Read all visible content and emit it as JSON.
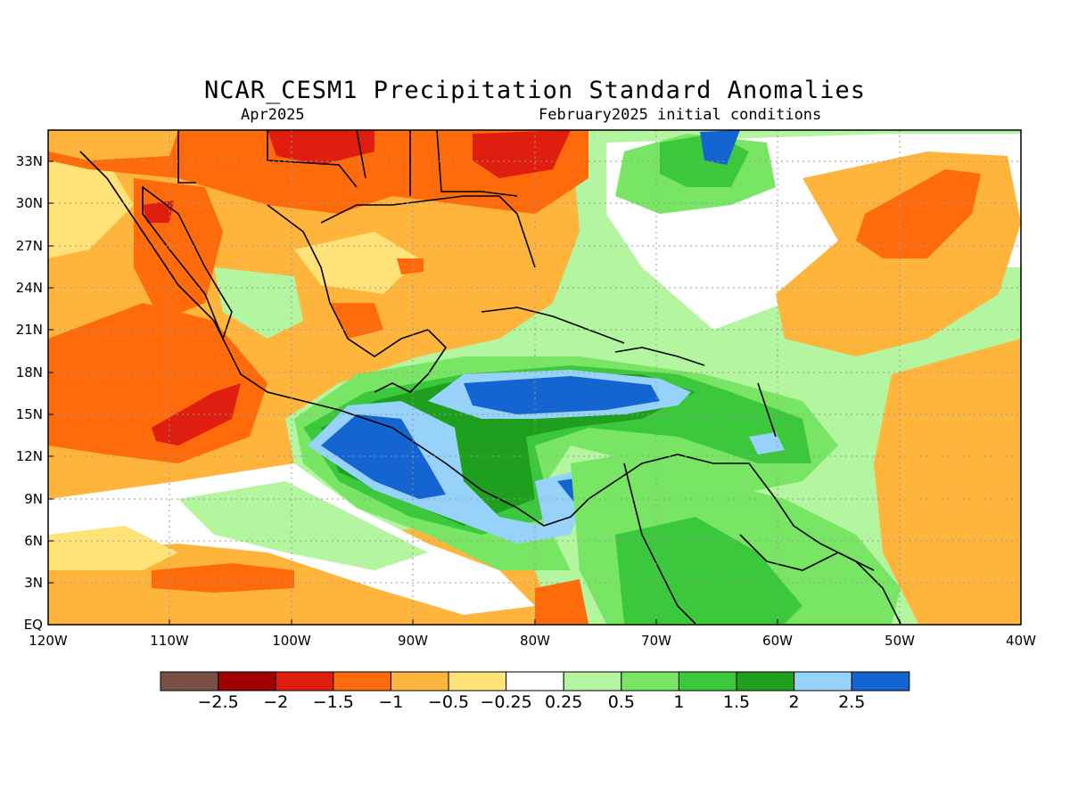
{
  "header": {
    "title": "NCAR_CESM1 Precipitation Standard Anomalies",
    "valid_month": "Apr2025",
    "init": "February2025 initial conditions"
  },
  "map": {
    "lon_range": [
      -120,
      -40
    ],
    "lat_range": [
      0,
      35
    ],
    "lat_labels": [
      "EQ",
      "3N",
      "6N",
      "9N",
      "12N",
      "15N",
      "18N",
      "21N",
      "24N",
      "27N",
      "30N",
      "33N"
    ],
    "lon_labels": [
      "120W",
      "110W",
      "100W",
      "90W",
      "80W",
      "70W",
      "60W",
      "50W",
      "40W"
    ]
  },
  "colorbar": {
    "colors": [
      "#7a5046",
      "#a00000",
      "#e01e10",
      "#ff6a0a",
      "#ffb43c",
      "#ffe278",
      "#ffffff",
      "#b4f5a0",
      "#78e664",
      "#3cc83c",
      "#1ea01e",
      "#96d2fa",
      "#1464d2"
    ],
    "labels": [
      "−2.5",
      "−2",
      "−1.5",
      "−1",
      "−0.5",
      "−0.25",
      "0.25",
      "0.5",
      "1",
      "1.5",
      "2",
      "2.5"
    ]
  }
}
